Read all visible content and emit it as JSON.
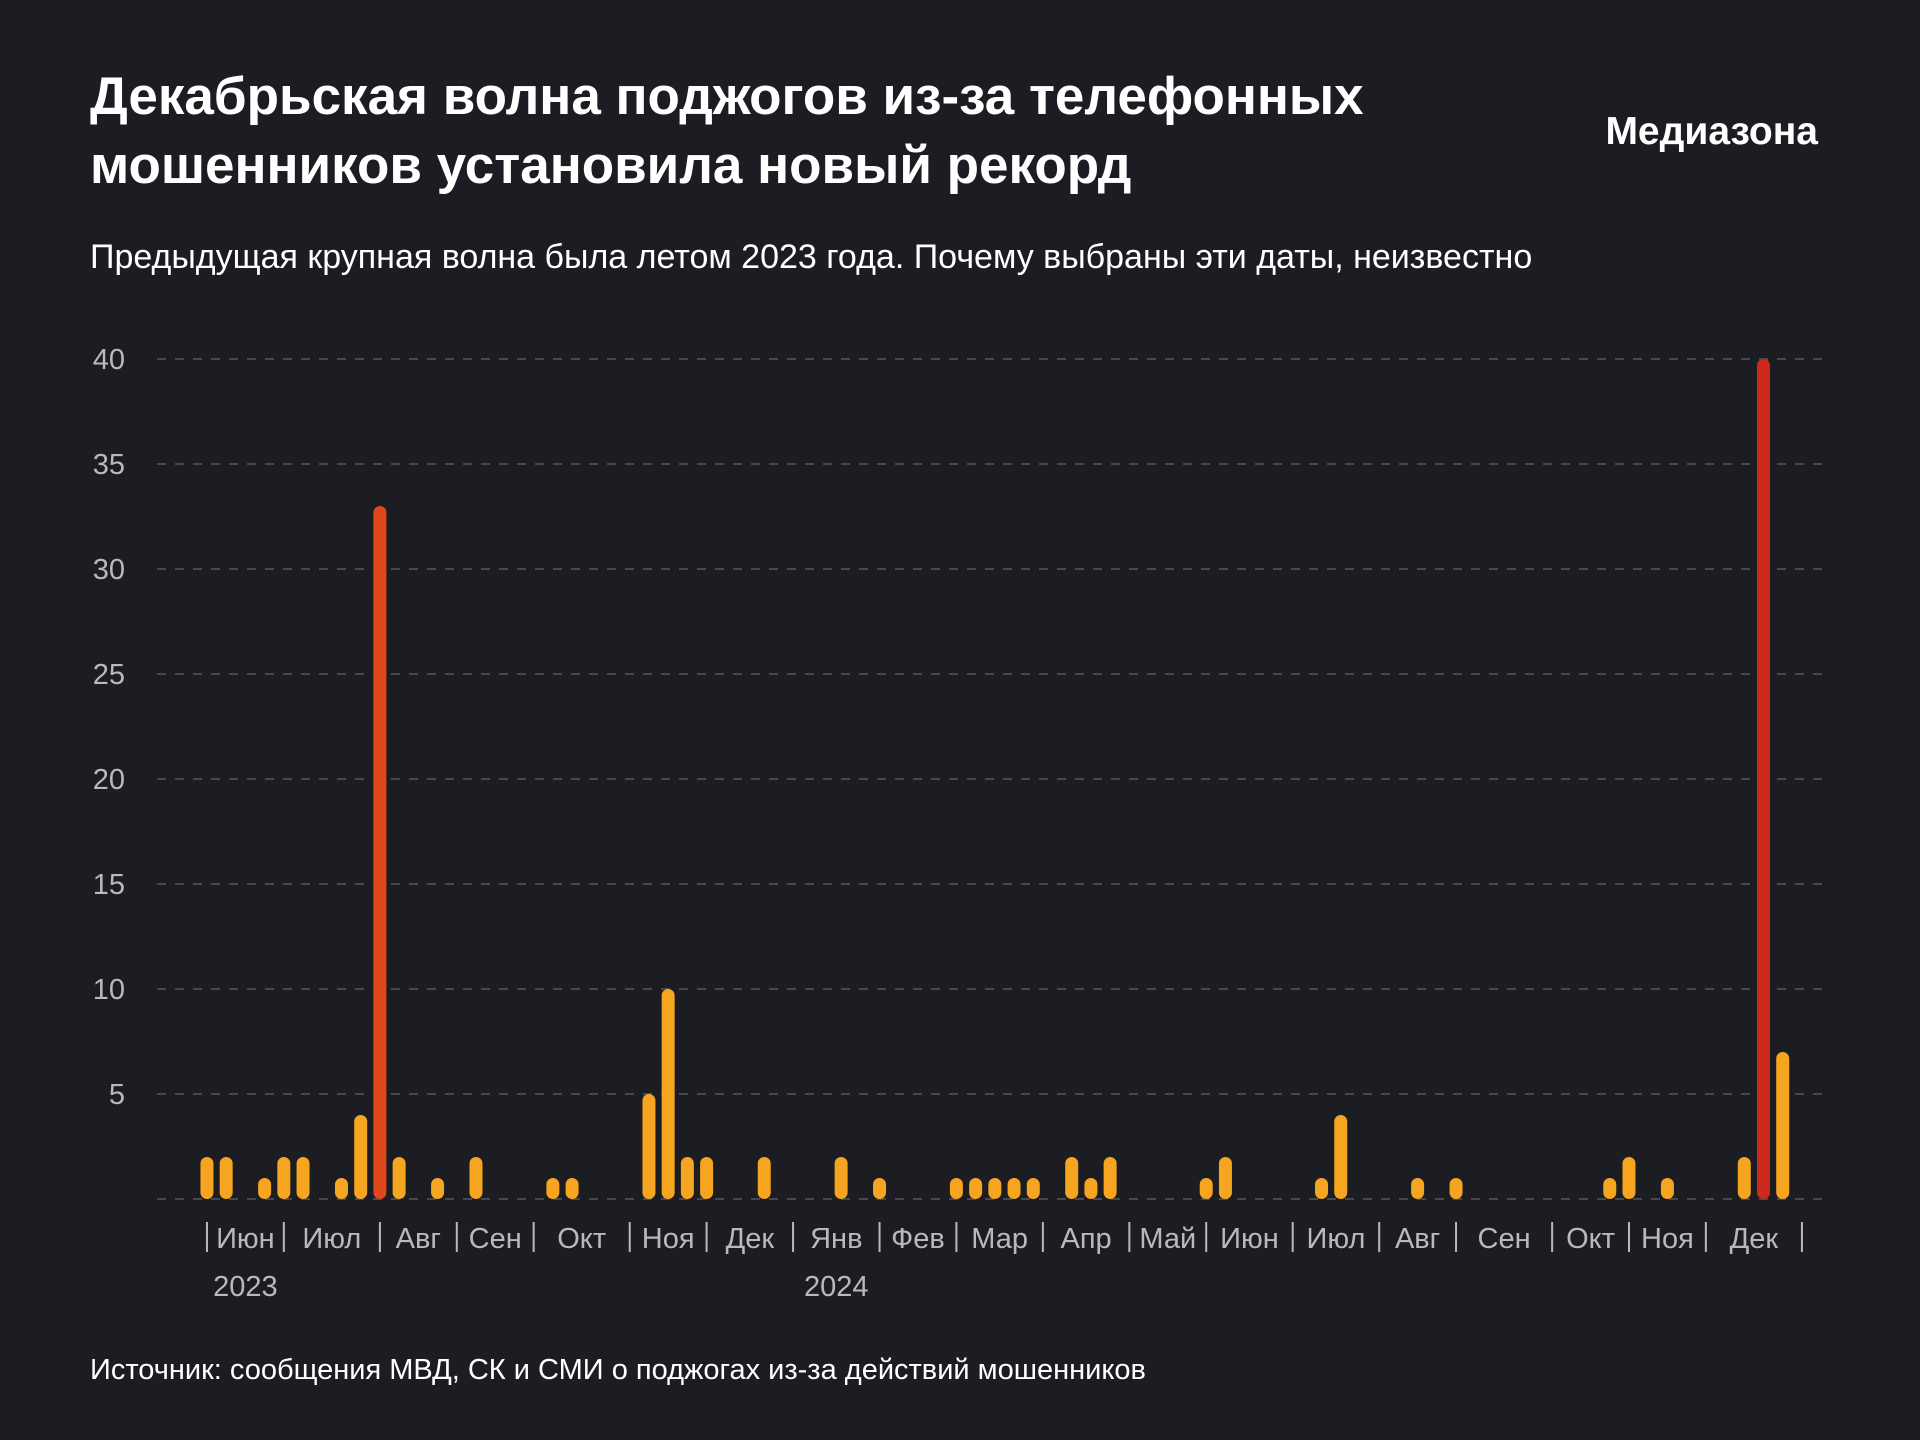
{
  "chart_data": {
    "type": "bar",
    "title_lines": [
      "Декабрьская волна поджогов из-за телефонных",
      "мошенников установила новый рекорд"
    ],
    "brand": "Медиазона",
    "subtitle": "Предыдущая крупная волна была летом 2023 года. Почему выбраны эти даты, неизвестно",
    "source": "Источник: сообщения МВД, СК и СМИ о поджогах из-за действий мошенников",
    "values": [
      2,
      2,
      0,
      1,
      2,
      2,
      0,
      1,
      4,
      33,
      2,
      0,
      1,
      0,
      2,
      0,
      0,
      0,
      1,
      1,
      0,
      0,
      0,
      5,
      10,
      2,
      2,
      0,
      0,
      2,
      0,
      0,
      0,
      2,
      0,
      1,
      0,
      0,
      0,
      1,
      1,
      1,
      1,
      1,
      0,
      2,
      1,
      2,
      0,
      0,
      0,
      0,
      1,
      2,
      0,
      0,
      0,
      0,
      1,
      4,
      0,
      0,
      0,
      1,
      0,
      1,
      0,
      0,
      0,
      0,
      0,
      0,
      0,
      1,
      2,
      0,
      1,
      0,
      0,
      0,
      2,
      40,
      7
    ],
    "color": "#f5a51f",
    "highlight_colors": {
      "9": "#e0461c",
      "81": "#cc281c"
    },
    "months": [
      "Июн",
      "Июл",
      "Авг",
      "Сен",
      "Окт",
      "Ноя",
      "Дек",
      "Янв",
      "Фев",
      "Мар",
      "Апр",
      "Май",
      "Июн",
      "Июл",
      "Авг",
      "Сен",
      "Окт",
      "Ноя",
      "Дек"
    ],
    "years": [
      "2023",
      null,
      null,
      null,
      null,
      null,
      null,
      "2024",
      null,
      null,
      null,
      null,
      null,
      null,
      null,
      null,
      null,
      null,
      null
    ],
    "month_boundaries": [
      0,
      4,
      9,
      13,
      17,
      22,
      26,
      30.5,
      35,
      39,
      43.5,
      48,
      52,
      56.5,
      61,
      65,
      70,
      74,
      78,
      83
    ],
    "xlim": [
      -2.6,
      84.2
    ],
    "ylim": [
      0,
      40
    ],
    "yticks": [
      5,
      10,
      15,
      20,
      25,
      30,
      35,
      40
    ],
    "grid": true
  }
}
